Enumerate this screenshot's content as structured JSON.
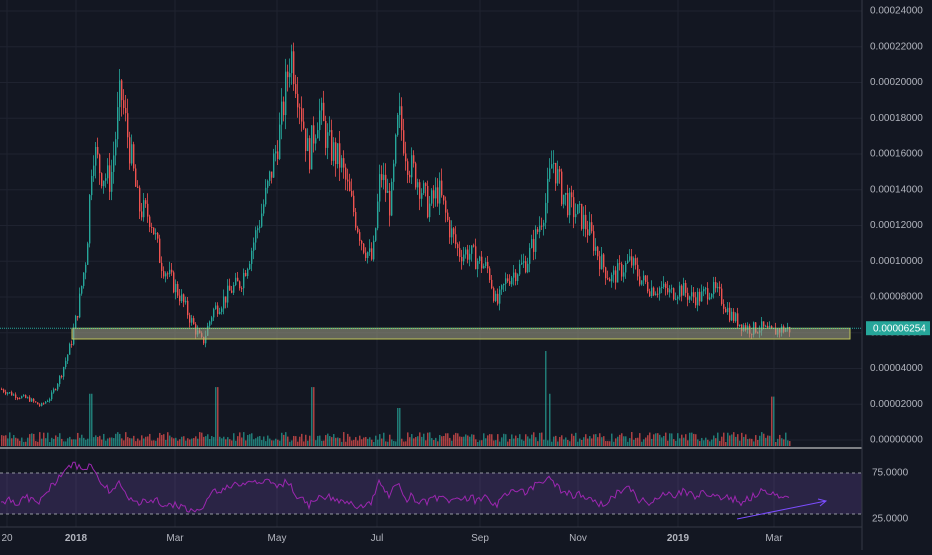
{
  "chart_data": [
    {
      "type": "candlestick",
      "x_ticks": [
        "20",
        "2018",
        "Mar",
        "May",
        "Jul",
        "Sep",
        "Nov",
        "2019",
        "Mar"
      ],
      "y_ticks": [
        "0.00000000",
        "0.00002000",
        "0.00004000",
        "0.00006000",
        "0.00008000",
        "0.00010000",
        "0.00012000",
        "0.00014000",
        "0.00016000",
        "0.00018000",
        "0.00020000",
        "0.00022000",
        "0.00024000"
      ],
      "ylim": [
        0,
        0.00024
      ],
      "current_price": "0.00006254",
      "support_zone": [
        5.65e-05,
        6.25e-05
      ],
      "close_path": [
        [
          0,
          2.85e-05
        ],
        [
          14,
          2.5e-05
        ],
        [
          28,
          2.3e-05
        ],
        [
          40,
          1.9e-05
        ],
        [
          50,
          2.4e-05
        ],
        [
          60,
          3.6e-05
        ],
        [
          70,
          5.3e-05
        ],
        [
          78,
          7.5e-05
        ],
        [
          86,
          0.000105
        ],
        [
          92,
          0.000165
        ],
        [
          100,
          0.00015
        ],
        [
          110,
          0.000145
        ],
        [
          120,
          0.000195
        ],
        [
          130,
          0.00016
        ],
        [
          138,
          0.00013
        ],
        [
          150,
          0.000125
        ],
        [
          160,
          0.0001
        ],
        [
          170,
          9e-05
        ],
        [
          180,
          8e-05
        ],
        [
          192,
          6.5e-05
        ],
        [
          202,
          5.4e-05
        ],
        [
          212,
          7.2e-05
        ],
        [
          222,
          7.8e-05
        ],
        [
          232,
          8.5e-05
        ],
        [
          240,
          8.8e-05
        ],
        [
          250,
          0.000105
        ],
        [
          260,
          0.000125
        ],
        [
          270,
          0.000148
        ],
        [
          280,
          0.000175
        ],
        [
          290,
          0.000218
        ],
        [
          298,
          0.000195
        ],
        [
          308,
          0.000158
        ],
        [
          318,
          0.000185
        ],
        [
          328,
          0.000165
        ],
        [
          340,
          0.000155
        ],
        [
          352,
          0.00013
        ],
        [
          362,
          0.00011
        ],
        [
          372,
          0.0001
        ],
        [
          380,
          0.00015
        ],
        [
          390,
          0.00013
        ],
        [
          398,
          0.000182
        ],
        [
          408,
          0.000155
        ],
        [
          418,
          0.000145
        ],
        [
          428,
          0.00013
        ],
        [
          438,
          0.00014
        ],
        [
          448,
          0.00012
        ],
        [
          458,
          0.000105
        ],
        [
          468,
          0.000105
        ],
        [
          478,
          0.0001
        ],
        [
          488,
          9.5e-05
        ],
        [
          496,
          7.5e-05
        ],
        [
          506,
          9e-05
        ],
        [
          516,
          9.5e-05
        ],
        [
          526,
          0.0001
        ],
        [
          536,
          0.000115
        ],
        [
          546,
          0.000135
        ],
        [
          552,
          0.000158
        ],
        [
          560,
          0.00014
        ],
        [
          570,
          0.00013
        ],
        [
          580,
          0.000125
        ],
        [
          590,
          0.000115
        ],
        [
          600,
          0.0001
        ],
        [
          610,
          9e-05
        ],
        [
          620,
          9.5e-05
        ],
        [
          630,
          0.0001
        ],
        [
          640,
          9e-05
        ],
        [
          650,
          8.5e-05
        ],
        [
          660,
          8.5e-05
        ],
        [
          670,
          8.2e-05
        ],
        [
          680,
          8.5e-05
        ],
        [
          690,
          8e-05
        ],
        [
          700,
          8e-05
        ],
        [
          710,
          8.5e-05
        ],
        [
          720,
          8e-05
        ],
        [
          730,
          7e-05
        ],
        [
          740,
          6.5e-05
        ],
        [
          750,
          6.2e-05
        ],
        [
          760,
          6.3e-05
        ],
        [
          770,
          6e-05
        ],
        [
          780,
          6.2e-05
        ],
        [
          789,
          6.2e-05
        ]
      ]
    },
    {
      "type": "bar",
      "role": "volume",
      "volume_spikes": [
        [
          90,
          0.55
        ],
        [
          216,
          0.62
        ],
        [
          312,
          0.62
        ],
        [
          398,
          0.4
        ],
        [
          545,
          1.0
        ],
        [
          549,
          0.55
        ],
        [
          772,
          0.52
        ]
      ]
    },
    {
      "type": "line",
      "role": "rsi",
      "y_ticks": [
        "75.0000",
        "25.0000"
      ],
      "ylim": [
        0,
        100
      ],
      "band": [
        25,
        75
      ]
    }
  ]
}
